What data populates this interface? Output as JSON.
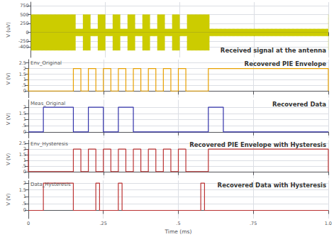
{
  "chart_data": [
    {
      "type": "area",
      "ylabel": "V (uV)",
      "annotations": [
        "Received signal at the antenna"
      ],
      "x": [
        0,
        0.15,
        0.15,
        0.175,
        0.175,
        0.2,
        0.2,
        0.225,
        0.225,
        0.25,
        0.25,
        0.275,
        0.275,
        0.3,
        0.3,
        0.325,
        0.325,
        0.35,
        0.35,
        0.375,
        0.375,
        0.4,
        0.4,
        0.425,
        0.425,
        0.45,
        0.45,
        0.475,
        0.475,
        0.5,
        0.5,
        0.525,
        0.525,
        0.6,
        0.6,
        1.0,
        1.0
      ],
      "series": [
        {
          "color": "#cccc00",
          "values": [
            500,
            500,
            100,
            100,
            500,
            500,
            100,
            100,
            500,
            500,
            100,
            100,
            500,
            500,
            100,
            100,
            500,
            500,
            100,
            100,
            500,
            500,
            100,
            100,
            500,
            500,
            100,
            100,
            500,
            500,
            100,
            100,
            500,
            500,
            100,
            100,
            500
          ]
        },
        {
          "color": "#cccc00",
          "values": [
            -500,
            -500,
            -100,
            -100,
            -500,
            -500,
            -100,
            -100,
            -500,
            -500,
            -100,
            -100,
            -500,
            -500,
            -100,
            -100,
            -500,
            -500,
            -100,
            -100,
            -500,
            -500,
            -100,
            -100,
            -500,
            -500,
            -100,
            -100,
            -500,
            -500,
            -100,
            -100,
            -500,
            -500,
            -100,
            -100,
            -500
          ]
        }
      ],
      "xlim": [
        0,
        1.0
      ],
      "xticks": [
        0,
        {
          "value": 0.25,
          "label": ".25"
        },
        {
          "value": 0.5,
          "label": ".5"
        },
        {
          "value": 0.75,
          "label": ".75"
        },
        {
          "value": 1.0,
          "label": "1.0"
        }
      ],
      "ylim": [
        -700,
        850
      ],
      "yticks": [
        750,
        500,
        250,
        0,
        -250,
        -400
      ],
      "grid": true,
      "tick_labels": "y"
    },
    {
      "type": "line",
      "title": "Env_Original",
      "ylabel": "V (V)",
      "annotations": [
        "Recovered PIE Envelope"
      ],
      "color": "#e8a000",
      "x": [
        0,
        0,
        0.15,
        0.15,
        0.175,
        0.175,
        0.2,
        0.2,
        0.225,
        0.225,
        0.25,
        0.25,
        0.275,
        0.275,
        0.3,
        0.3,
        0.325,
        0.325,
        0.35,
        0.35,
        0.375,
        0.375,
        0.4,
        0.4,
        0.425,
        0.425,
        0.45,
        0.45,
        0.475,
        0.475,
        0.5,
        0.5,
        0.525,
        0.525,
        0.6,
        0.6,
        1.0,
        1.0
      ],
      "values": [
        2,
        0,
        0,
        2,
        2,
        0,
        0,
        2,
        2,
        0,
        0,
        2,
        2,
        0,
        0,
        2,
        2,
        0,
        0,
        2,
        2,
        0,
        0,
        2,
        2,
        0,
        0,
        2,
        2,
        0,
        0,
        2,
        2,
        0,
        0,
        2,
        2,
        0
      ],
      "xlim": [
        0,
        1.0
      ],
      "xticks": [
        0,
        {
          "value": 0.25,
          "label": ".25"
        },
        {
          "value": 0.5,
          "label": ".5"
        },
        {
          "value": 0.75,
          "label": ".75"
        },
        {
          "value": 1.0,
          "label": "1.0"
        }
      ],
      "ylim": [
        -0.6,
        2.8
      ],
      "yticks": [
        2.5,
        2,
        1.5,
        1,
        {
          "value": 0.5,
          "label": ".5"
        },
        0
      ],
      "grid": true,
      "tick_labels": "y"
    },
    {
      "type": "line",
      "title": "Meas_Original",
      "ylabel": "V (V)",
      "annotations": [
        "Recovered Data"
      ],
      "color": "#3333aa",
      "x": [
        0,
        0.05,
        0.05,
        0.15,
        0.15,
        0.2,
        0.2,
        0.25,
        0.25,
        0.3,
        0.3,
        0.35,
        0.35,
        0.6,
        0.6,
        0.65,
        0.65,
        1.0
      ],
      "values": [
        0,
        0,
        2,
        2,
        0,
        0,
        2,
        2,
        0,
        0,
        2,
        2,
        0,
        0,
        2,
        2,
        0,
        0
      ],
      "xlim": [
        0,
        1.0
      ],
      "xticks": [
        0,
        {
          "value": 0.25,
          "label": ".25"
        },
        {
          "value": 0.5,
          "label": ".5"
        },
        {
          "value": 0.75,
          "label": ".75"
        },
        {
          "value": 1.0,
          "label": "1.0"
        }
      ],
      "ylim": [
        -0.5,
        2.6
      ],
      "yticks": [
        2,
        1.5,
        1,
        {
          "value": 0.5,
          "label": ".5"
        },
        0
      ],
      "grid": true,
      "tick_labels": "y"
    },
    {
      "type": "line",
      "title": "Env_Hysteresis",
      "ylabel": "V (V)",
      "annotations": [
        "Recovered PIE Envelope with Hysteresis"
      ],
      "color": "#bb3333",
      "x": [
        0,
        0,
        0.15,
        0.15,
        0.175,
        0.175,
        0.2,
        0.2,
        0.225,
        0.225,
        0.25,
        0.25,
        0.275,
        0.275,
        0.3,
        0.3,
        0.325,
        0.325,
        0.35,
        0.35,
        0.375,
        0.375,
        0.4,
        0.4,
        0.425,
        0.425,
        0.45,
        0.45,
        0.475,
        0.475,
        0.5,
        0.5,
        0.525,
        0.525,
        0.6,
        0.6,
        1.0,
        1.0
      ],
      "values": [
        2,
        0,
        0,
        2,
        2,
        0,
        0,
        2,
        2,
        0,
        0,
        2,
        2,
        0,
        0,
        2,
        2,
        0,
        0,
        2,
        2,
        0,
        0,
        2,
        2,
        0,
        0,
        2,
        2,
        0,
        0,
        2,
        2,
        0,
        0,
        2,
        2,
        0
      ],
      "xlim": [
        0,
        1.0
      ],
      "xticks": [
        0,
        {
          "value": 0.25,
          "label": ".25"
        },
        {
          "value": 0.5,
          "label": ".5"
        },
        {
          "value": 0.75,
          "label": ".75"
        },
        {
          "value": 1.0,
          "label": "1.0"
        }
      ],
      "ylim": [
        -0.6,
        2.8
      ],
      "yticks": [
        2.5,
        2,
        1.5,
        1,
        {
          "value": 0.5,
          "label": ".5"
        },
        0
      ],
      "grid": true,
      "tick_labels": "y"
    },
    {
      "type": "line",
      "title": "Data_Hysteresis",
      "xlabel": "Time (ms)",
      "ylabel": "V (V)",
      "annotations": [
        "Recovered Data with Hysteresis"
      ],
      "color": "#bb3333",
      "x": [
        0,
        0.05,
        0.05,
        0.15,
        0.15,
        0.225,
        0.225,
        0.2375,
        0.2375,
        0.3,
        0.3,
        0.3125,
        0.3125,
        0.575,
        0.575,
        0.5875,
        0.5875,
        1.0
      ],
      "values": [
        0,
        0,
        2,
        2,
        0,
        0,
        2,
        2,
        0,
        0,
        2,
        2,
        0,
        0,
        2,
        2,
        0,
        0
      ],
      "xlim": [
        0,
        1.0
      ],
      "xticks": [
        0,
        {
          "value": 0.25,
          "label": ".25"
        },
        {
          "value": 0.5,
          "label": ".5"
        },
        {
          "value": 0.75,
          "label": ".75"
        },
        {
          "value": 1.0,
          "label": "1.0"
        }
      ],
      "ylim": [
        -0.6,
        2.2
      ],
      "yticks": [
        2,
        1.5,
        1,
        {
          "value": 0.5,
          "label": ".5"
        },
        0
      ],
      "grid": true
    }
  ]
}
